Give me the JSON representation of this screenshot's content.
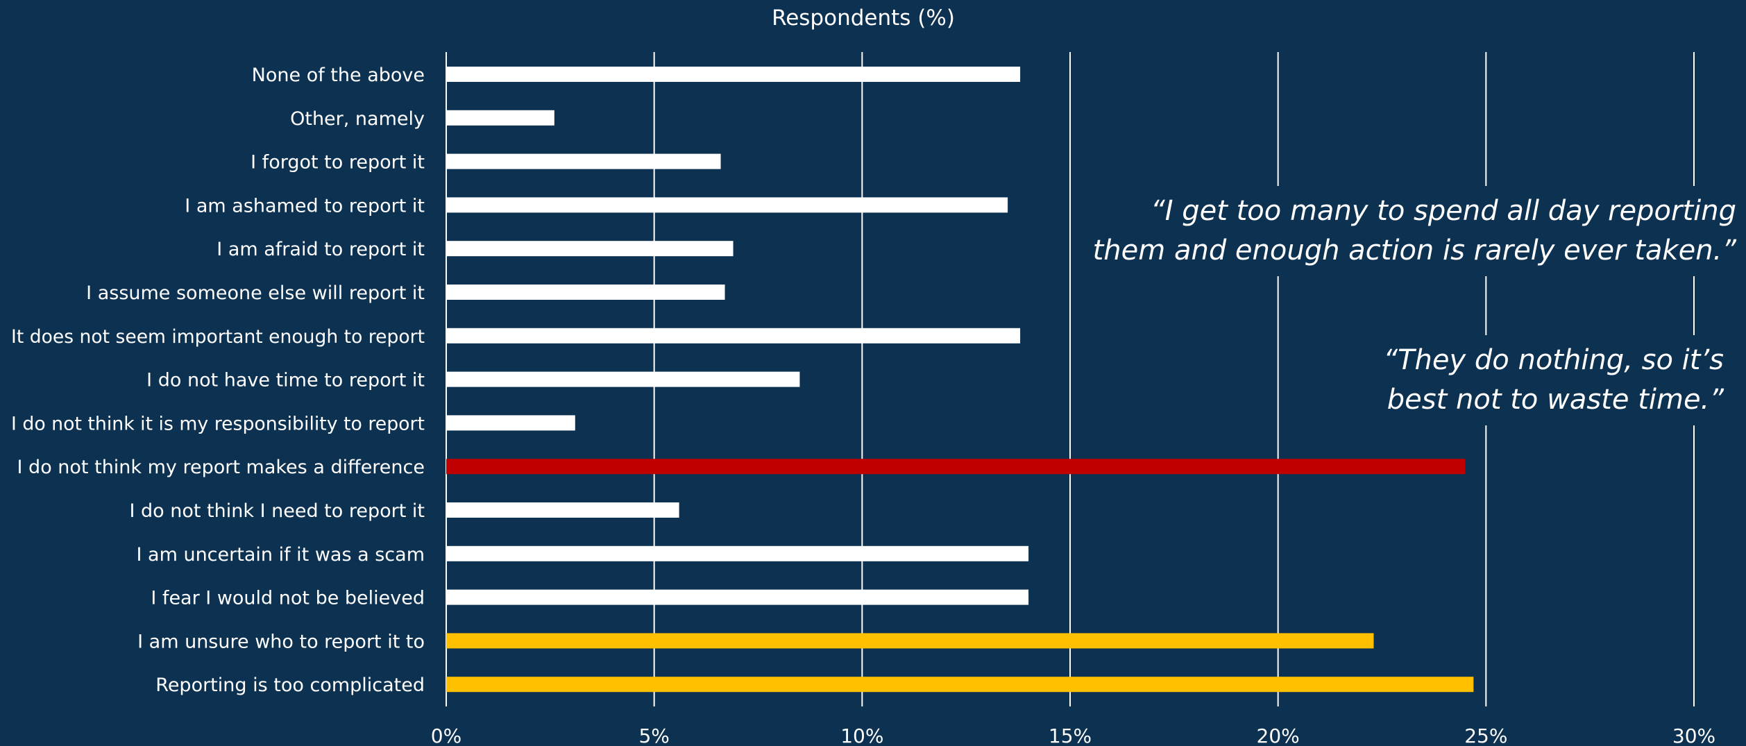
{
  "colors": {
    "background": "#0d3151",
    "default_bar": "#ffffff",
    "highlight_red": "#c00000",
    "highlight_yellow": "#ffc000",
    "text": "#ffffff",
    "gridline": "#ffffff"
  },
  "chart_data": {
    "type": "bar",
    "orientation": "horizontal",
    "title": "Respondents (%)",
    "xlabel": "",
    "ylabel": "",
    "xlim": [
      0,
      30
    ],
    "ticks": [
      {
        "value": 0,
        "label": "0%"
      },
      {
        "value": 5,
        "label": "5%"
      },
      {
        "value": 10,
        "label": "10%"
      },
      {
        "value": 15,
        "label": "15%"
      },
      {
        "value": 20,
        "label": "20%"
      },
      {
        "value": 25,
        "label": "25%"
      },
      {
        "value": 30,
        "label": "30%"
      }
    ],
    "grid": true,
    "legend": "none",
    "categories": [
      "None of the above",
      "Other, namely",
      "I forgot to report it",
      "I am ashamed to report it",
      "I am afraid to report it",
      "I assume someone else will report it",
      "It does not seem important enough to report",
      "I do not have time to report it",
      "I do not think it is my responsibility to report",
      "I do not think my report makes a difference",
      "I do not think I need to report it",
      "I am uncertain if it was a scam",
      "I fear I would not be believed",
      "I am unsure who to report it to",
      "Reporting is too complicated"
    ],
    "values": [
      13.8,
      2.6,
      6.6,
      13.5,
      6.9,
      6.7,
      13.8,
      8.5,
      3.1,
      24.5,
      5.6,
      14.0,
      14.0,
      22.3,
      24.7
    ],
    "bar_colors": [
      "#ffffff",
      "#ffffff",
      "#ffffff",
      "#ffffff",
      "#ffffff",
      "#ffffff",
      "#ffffff",
      "#ffffff",
      "#ffffff",
      "#c00000",
      "#ffffff",
      "#ffffff",
      "#ffffff",
      "#ffc000",
      "#ffc000"
    ],
    "annotations": [
      "“I get too many to spend all day reporting them and enough action is rarely ever taken.”",
      "“They do nothing, so it’s best not to waste time.”"
    ]
  },
  "quotes": [
    {
      "lines": [
        "“I get too many to spend all day reporting",
        "them and enough action is rarely ever taken.”"
      ]
    },
    {
      "lines": [
        "“They do nothing, so it’s",
        "best not to waste time.”"
      ]
    }
  ]
}
